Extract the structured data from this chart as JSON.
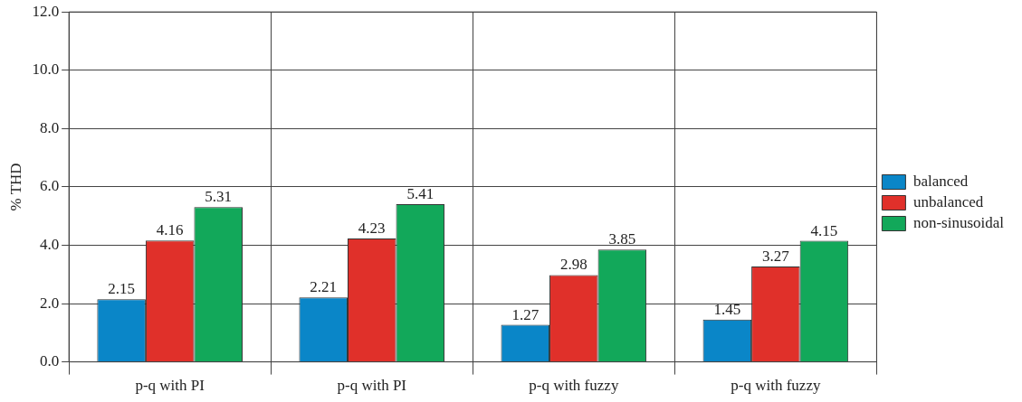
{
  "chart_data": {
    "type": "bar",
    "ylabel": "% THD",
    "categories": [
      "p-q with PI",
      "p-q with PI",
      "p-q with fuzzy",
      "p-q with fuzzy"
    ],
    "series": [
      {
        "name": "balanced",
        "color": "#0a86c8",
        "values": [
          2.15,
          2.21,
          1.27,
          1.45
        ]
      },
      {
        "name": "unbalanced",
        "color": "#e0302a",
        "values": [
          4.16,
          4.23,
          2.98,
          3.27
        ]
      },
      {
        "name": "non-sinusoidal",
        "color": "#12a85a",
        "values": [
          5.31,
          5.41,
          3.85,
          4.15
        ]
      }
    ],
    "ylim": [
      0,
      12
    ],
    "yticks": [
      {
        "value": 0,
        "label": "0.0"
      },
      {
        "value": 2,
        "label": "2.0"
      },
      {
        "value": 4,
        "label": "4.0"
      },
      {
        "value": 6,
        "label": "6.0"
      },
      {
        "value": 8,
        "label": "8.0"
      },
      {
        "value": 10,
        "label": "10.0"
      },
      {
        "value": 12,
        "label": "12.0"
      }
    ],
    "grid": true,
    "legend": "right",
    "data_labels": true
  }
}
